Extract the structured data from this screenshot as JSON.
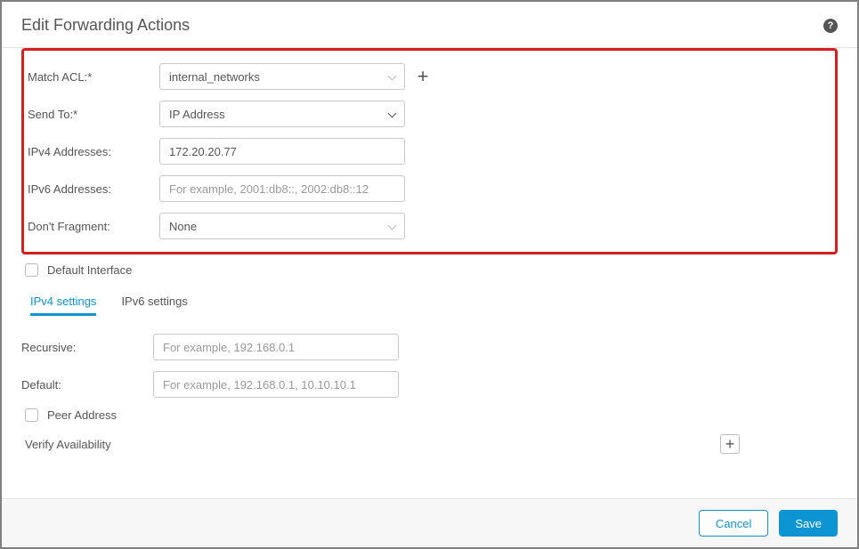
{
  "colors": {
    "accent": "#0d94d2",
    "highlight_border": "#d81f1f",
    "text": "#555555",
    "border": "#c9c9c9",
    "footer_bg": "#f7f7f7"
  },
  "header": {
    "title": "Edit Forwarding Actions",
    "help_symbol": "?"
  },
  "form": {
    "match_acl": {
      "label": "Match ACL:*",
      "value": "internal_networks"
    },
    "send_to": {
      "label": "Send To:*",
      "value": "IP Address"
    },
    "ipv4_addresses": {
      "label": "IPv4 Addresses:",
      "value": "172.20.20.77"
    },
    "ipv6_addresses": {
      "label": "IPv6 Addresses:",
      "placeholder": "For example, 2001:db8::, 2002:db8::12"
    },
    "dont_fragment": {
      "label": "Don't Fragment:",
      "value": "None"
    },
    "default_interface": {
      "label": "Default Interface",
      "checked": false
    },
    "tabs": {
      "ipv4": "IPv4 settings",
      "ipv6": "IPv6 settings",
      "active": "ipv4"
    },
    "recursive": {
      "label": "Recursive:",
      "placeholder": "For example, 192.168.0.1"
    },
    "default_route": {
      "label": "Default:",
      "placeholder": "For example, 192.168.0.1, 10.10.10.1"
    },
    "peer_address": {
      "label": "Peer Address",
      "checked": false
    },
    "verify_availability": {
      "label": "Verify Availability"
    }
  },
  "footer": {
    "cancel": "Cancel",
    "save": "Save"
  }
}
